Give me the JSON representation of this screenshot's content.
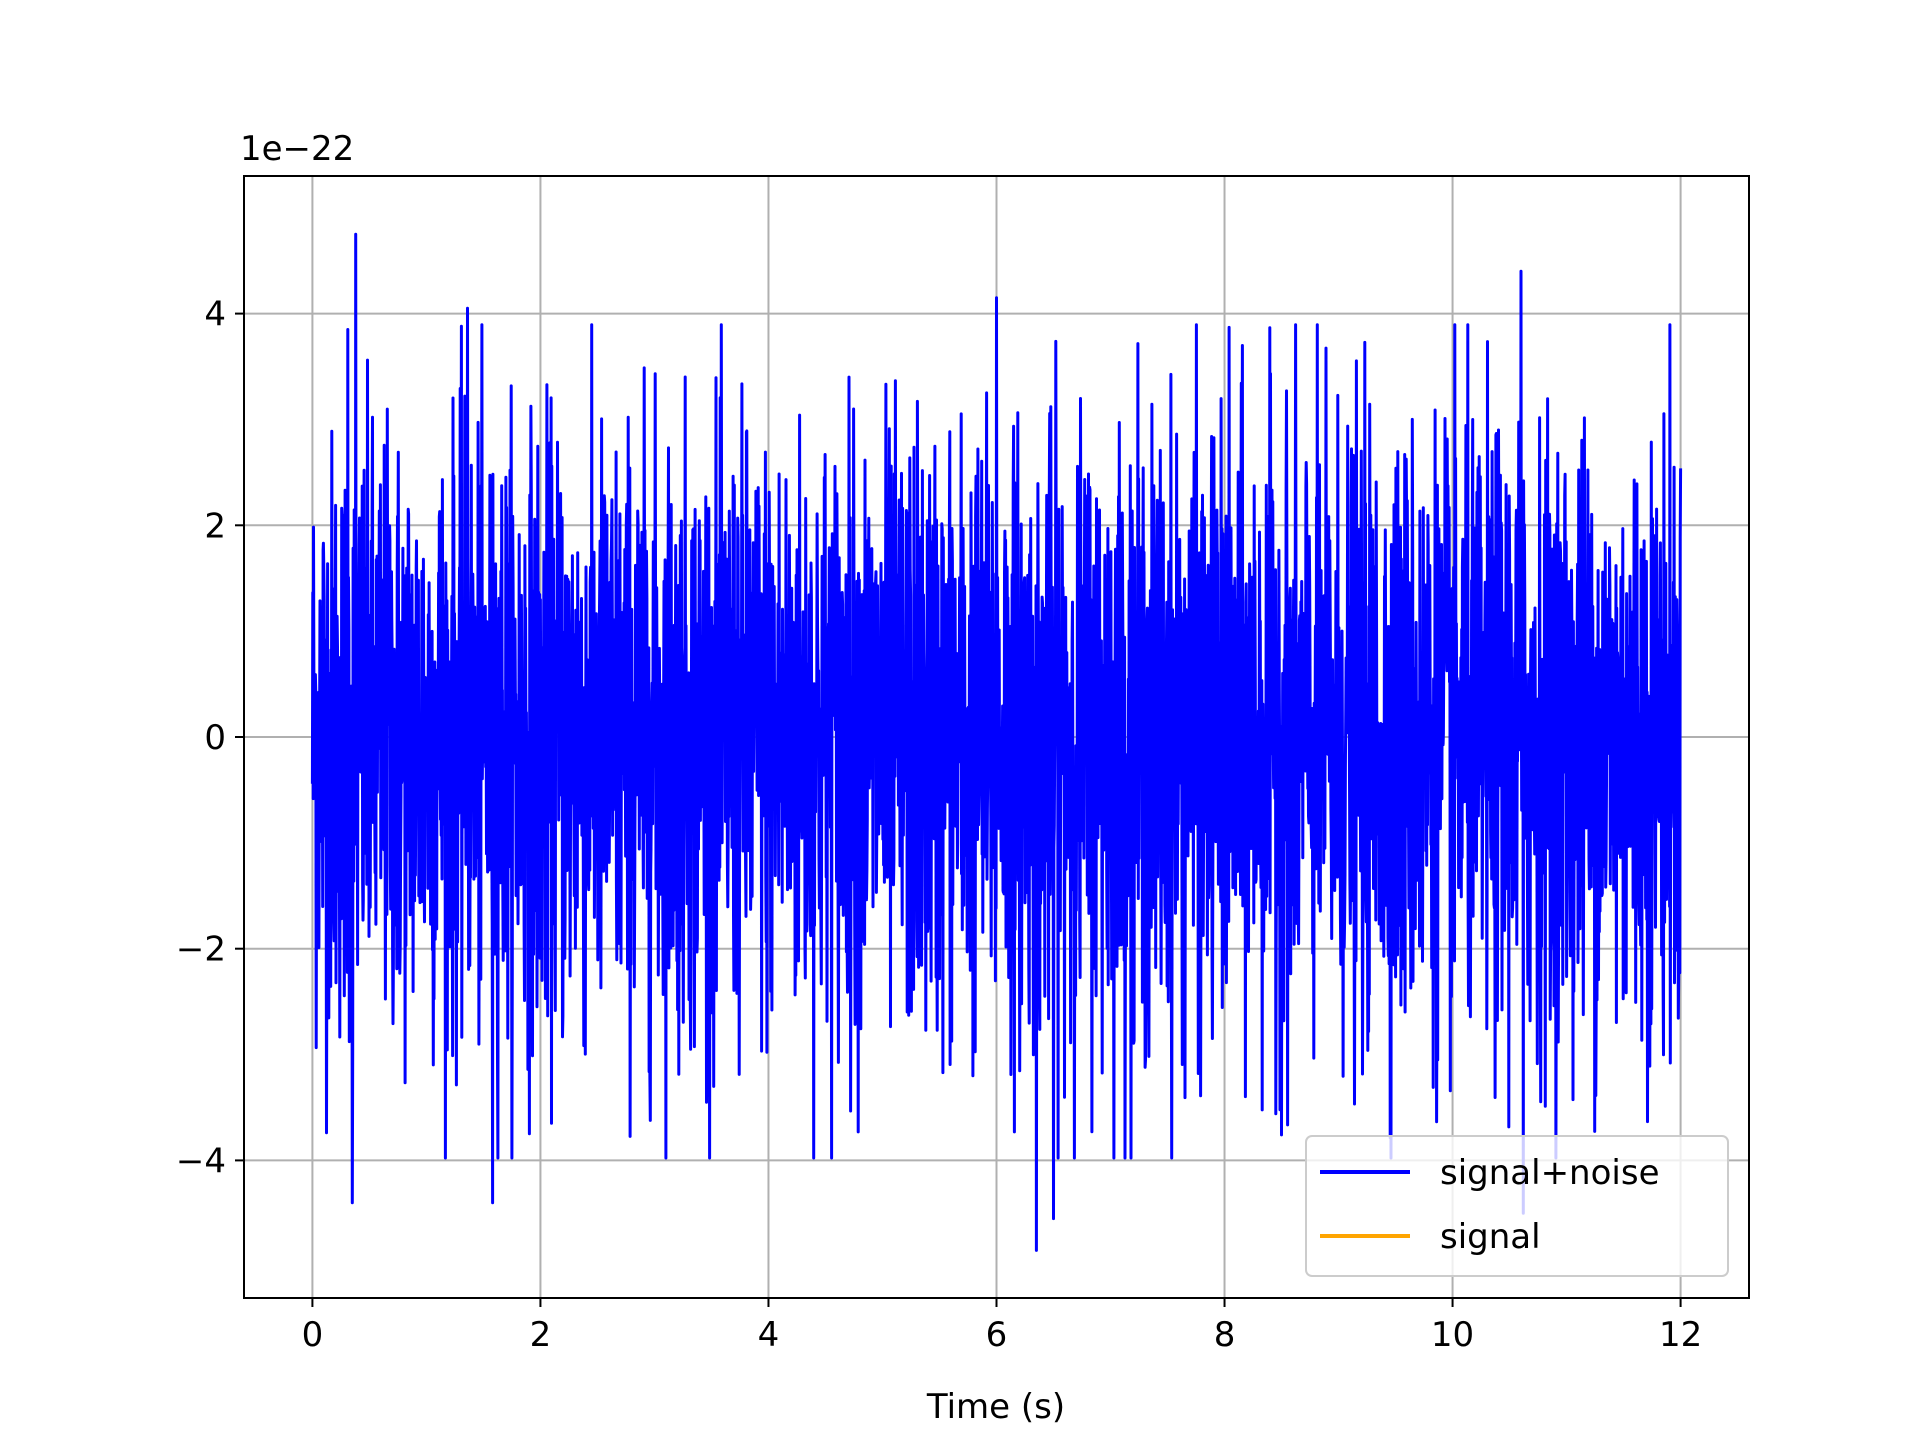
{
  "chart_data": {
    "type": "line",
    "title": "",
    "xlabel": "Time (s)",
    "ylabel": "",
    "y_offset_label": "1e−22",
    "xlim": [
      -0.6,
      12.6
    ],
    "ylim": [
      -5.3,
      5.3
    ],
    "x_ticks": [
      0,
      2,
      4,
      6,
      8,
      10,
      12
    ],
    "x_tick_labels": [
      "0",
      "2",
      "4",
      "6",
      "8",
      "10",
      "12"
    ],
    "y_ticks": [
      -4,
      -2,
      0,
      2,
      4
    ],
    "y_tick_labels": [
      "−4",
      "−2",
      "0",
      "2",
      "4"
    ],
    "grid": true,
    "legend_position": "lower-right",
    "series": [
      {
        "name": "signal+noise",
        "color": "#0000ff",
        "x_range": [
          0,
          12
        ],
        "description_stats": {
          "typical_amplitude": 1.5,
          "max": 4.75,
          "min": -4.85
        },
        "peaks": [
          {
            "x": 0.38,
            "y": 4.75
          },
          {
            "x": 0.31,
            "y": 3.85
          },
          {
            "x": 1.36,
            "y": 4.05
          },
          {
            "x": 6.0,
            "y": 4.15
          },
          {
            "x": 10.6,
            "y": 4.4
          },
          {
            "x": 0.35,
            "y": -4.4
          },
          {
            "x": 1.58,
            "y": -4.4
          },
          {
            "x": 6.35,
            "y": -4.85
          },
          {
            "x": 6.5,
            "y": -4.55
          },
          {
            "x": 10.62,
            "y": -4.5
          }
        ]
      },
      {
        "name": "signal",
        "color": "#ffa500",
        "values_note": ""
      }
    ]
  }
}
